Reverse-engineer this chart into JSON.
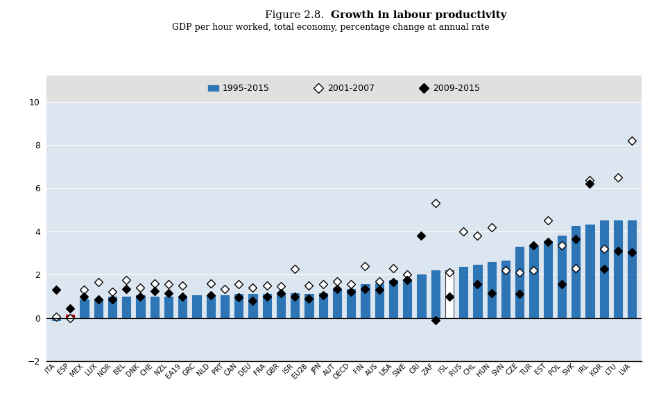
{
  "categories": [
    "ITA",
    "ESP",
    "MEX",
    "LUX",
    "NOR",
    "BEL",
    "DNK",
    "CHE",
    "NZL",
    "EA19",
    "GRC",
    "NLD",
    "PRT",
    "CAN",
    "DEU",
    "FRA",
    "GBR",
    "ISR",
    "EU28",
    "JPN",
    "AUT",
    "OECD",
    "FIN",
    "AUS",
    "USA",
    "SWE",
    "CRI",
    "ZAF",
    "ISL",
    "RUS",
    "CHL",
    "HUN",
    "SVN",
    "CZE",
    "TUR",
    "EST",
    "POL",
    "SVK",
    "IRL",
    "KOR",
    "LTU",
    "LVA"
  ],
  "bar_values": [
    -0.1,
    0.15,
    0.85,
    0.9,
    1.0,
    1.0,
    1.05,
    1.0,
    1.0,
    1.0,
    1.05,
    1.05,
    1.05,
    1.1,
    1.1,
    1.1,
    1.1,
    1.15,
    1.1,
    1.15,
    1.3,
    1.35,
    1.55,
    1.6,
    1.75,
    1.8,
    2.0,
    2.2,
    2.2,
    2.35,
    2.45,
    2.6,
    2.65,
    3.3,
    3.35,
    3.55,
    3.8,
    4.25,
    4.3,
    4.5,
    4.5,
    4.5
  ],
  "bar_facecolors": [
    "#2e75b6",
    "#cc0000",
    "#2e75b6",
    "#2e75b6",
    "#2e75b6",
    "#2e75b6",
    "#2e75b6",
    "#2e75b6",
    "#2e75b6",
    "#2e75b6",
    "#2e75b6",
    "#2e75b6",
    "#2e75b6",
    "#2e75b6",
    "#2e75b6",
    "#2e75b6",
    "#2e75b6",
    "#2e75b6",
    "#2e75b6",
    "#2e75b6",
    "#2e75b6",
    "#2e75b6",
    "#2e75b6",
    "#2e75b6",
    "#2e75b6",
    "#2e75b6",
    "#2e75b6",
    "#2e75b6",
    "#ffffff",
    "#2e75b6",
    "#2e75b6",
    "#2e75b6",
    "#2e75b6",
    "#2e75b6",
    "#2e75b6",
    "#2e75b6",
    "#2e75b6",
    "#2e75b6",
    "#2e75b6",
    "#2e75b6",
    "#2e75b6",
    "#2e75b6"
  ],
  "bar_edgecolors": [
    "#2e75b6",
    "#cc0000",
    "#2e75b6",
    "#2e75b6",
    "#2e75b6",
    "#2e75b6",
    "#2e75b6",
    "#2e75b6",
    "#2e75b6",
    "#2e75b6",
    "#2e75b6",
    "#2e75b6",
    "#2e75b6",
    "#2e75b6",
    "#2e75b6",
    "#2e75b6",
    "#2e75b6",
    "#2e75b6",
    "#2e75b6",
    "#2e75b6",
    "#2e75b6",
    "#2e75b6",
    "#2e75b6",
    "#2e75b6",
    "#2e75b6",
    "#2e75b6",
    "#2e75b6",
    "#2e75b6",
    "#444444",
    "#2e75b6",
    "#2e75b6",
    "#2e75b6",
    "#2e75b6",
    "#2e75b6",
    "#2e75b6",
    "#2e75b6",
    "#2e75b6",
    "#2e75b6",
    "#2e75b6",
    "#2e75b6",
    "#2e75b6",
    "#2e75b6"
  ],
  "diamond_open": [
    0.05,
    0.0,
    1.3,
    1.65,
    1.2,
    1.75,
    1.4,
    1.6,
    1.55,
    1.5,
    null,
    1.6,
    1.35,
    1.55,
    1.4,
    1.5,
    1.45,
    2.25,
    1.5,
    1.55,
    1.7,
    1.55,
    2.4,
    1.7,
    2.3,
    2.0,
    null,
    5.3,
    2.1,
    4.0,
    3.8,
    4.2,
    2.2,
    2.1,
    2.2,
    4.5,
    3.35,
    2.3,
    6.35,
    3.2,
    6.5,
    8.2
  ],
  "diamond_filled": [
    1.3,
    0.45,
    1.0,
    0.85,
    0.85,
    1.35,
    1.0,
    1.25,
    1.15,
    1.0,
    null,
    1.05,
    null,
    0.95,
    0.8,
    1.0,
    1.15,
    1.0,
    0.9,
    1.05,
    1.35,
    1.2,
    1.35,
    1.3,
    1.65,
    1.75,
    3.8,
    -0.1,
    1.0,
    null,
    1.55,
    1.15,
    null,
    1.1,
    3.35,
    3.5,
    1.55,
    3.65,
    6.2,
    2.25,
    3.1,
    3.05
  ],
  "ylim": [
    -2,
    10
  ],
  "yticks": [
    -2,
    0,
    2,
    4,
    6,
    8,
    10
  ],
  "bar_width": 0.6,
  "plot_bg": "#dce6f1",
  "legend_bg": "#e0e0e0",
  "title_prefix": "Figure 2.8.  ",
  "title_bold": "Growth in labour productivity",
  "subtitle": "GDP per hour worked, total economy, percentage change at annual rate",
  "legend_labels": [
    "1995-2015",
    "2001-2007",
    "2009-2015"
  ],
  "bar_color_main": "#2e75b6"
}
